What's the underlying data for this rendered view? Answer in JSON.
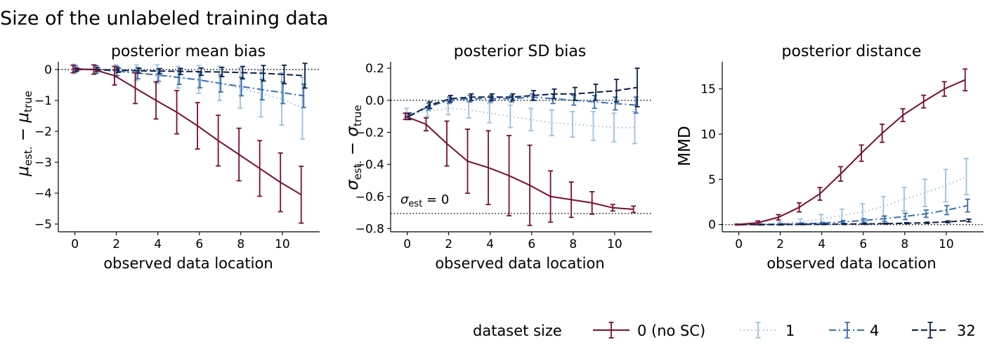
{
  "suptitle": "Size of the unlabeled training data",
  "legend": {
    "title": "dataset size",
    "placement": "bottom-right",
    "entries": [
      "0 (no SC)",
      "1",
      "4",
      "32"
    ]
  },
  "colors": {
    "0": "#7a0f2e",
    "1": "#9ec0dc",
    "4": "#3a6fae",
    "32": "#0c1f48"
  },
  "chart_data": [
    {
      "type": "line",
      "title": "posterior mean bias",
      "xlabel": "observed data location",
      "ylabel_main": "μ",
      "ylabel_sub1": "est.",
      "ylabel_mid": " − μ",
      "ylabel_sub2": "true",
      "xlim": [
        -0.8,
        11.8
      ],
      "ylim": [
        -5.25,
        0.25
      ],
      "xticks": [
        0,
        2,
        4,
        6,
        8,
        10
      ],
      "yticks": [
        0,
        -1,
        -2,
        -3,
        -4,
        -5
      ],
      "ref_line": 0,
      "x": [
        0,
        1,
        2,
        3,
        4,
        5,
        6,
        7,
        8,
        9,
        10,
        11
      ],
      "series": [
        {
          "name": "0 (no SC)",
          "style": "solid",
          "values": [
            0.02,
            0.0,
            -0.2,
            -0.6,
            -1.0,
            -1.38,
            -1.82,
            -2.3,
            -2.75,
            -3.2,
            -3.65,
            -4.05
          ],
          "errors": [
            0.12,
            0.15,
            0.3,
            0.5,
            0.6,
            0.7,
            0.75,
            0.82,
            0.85,
            0.9,
            0.95,
            0.92
          ]
        },
        {
          "name": "1",
          "style": "dotted",
          "values": [
            0.02,
            0.0,
            -0.05,
            -0.1,
            -0.15,
            -0.25,
            -0.32,
            -0.45,
            -0.6,
            -0.78,
            -0.95,
            -1.25
          ],
          "errors": [
            0.15,
            0.15,
            0.2,
            0.25,
            0.3,
            0.35,
            0.45,
            0.55,
            0.65,
            0.75,
            0.85,
            1.0
          ]
        },
        {
          "name": "4",
          "style": "dashdot",
          "values": [
            0.02,
            0.0,
            -0.05,
            -0.12,
            -0.18,
            -0.26,
            -0.34,
            -0.45,
            -0.55,
            -0.65,
            -0.75,
            -0.85
          ],
          "errors": [
            0.1,
            0.12,
            0.15,
            0.18,
            0.2,
            0.22,
            0.25,
            0.28,
            0.3,
            0.33,
            0.35,
            0.38
          ]
        },
        {
          "name": "32",
          "style": "dashed",
          "values": [
            0.0,
            0.0,
            -0.02,
            -0.04,
            -0.05,
            -0.06,
            -0.07,
            -0.08,
            -0.1,
            -0.12,
            -0.16,
            -0.2
          ],
          "errors": [
            0.05,
            0.06,
            0.07,
            0.08,
            0.08,
            0.1,
            0.12,
            0.15,
            0.2,
            0.25,
            0.3,
            0.4
          ]
        }
      ]
    },
    {
      "type": "line",
      "title": "posterior SD bias",
      "xlabel": "observed data location",
      "ylabel_main": "σ",
      "ylabel_sub1": "est.",
      "ylabel_mid": " − σ",
      "ylabel_sub2": "true",
      "xlim": [
        -0.8,
        11.8
      ],
      "ylim": [
        -0.82,
        0.24
      ],
      "xticks": [
        0,
        2,
        4,
        6,
        8,
        10
      ],
      "yticks": [
        0.2,
        0.0,
        -0.2,
        -0.4,
        -0.6,
        -0.8
      ],
      "ytick_labels": [
        "0.2",
        "0.0",
        "−0.2",
        "−0.4",
        "−0.6",
        "−0.8"
      ],
      "ref_line": 0,
      "ref_line2": -0.706,
      "annotation_main": "σ",
      "annotation_sub": "est",
      "annotation_rest": " = 0",
      "x": [
        0,
        1,
        2,
        3,
        4,
        5,
        6,
        7,
        8,
        9,
        10,
        11
      ],
      "series": [
        {
          "name": "0 (no SC)",
          "style": "solid",
          "values": [
            -0.1,
            -0.15,
            -0.27,
            -0.38,
            -0.42,
            -0.47,
            -0.53,
            -0.6,
            -0.62,
            -0.64,
            -0.67,
            -0.68
          ],
          "errors": [
            0.02,
            0.04,
            0.14,
            0.2,
            0.23,
            0.25,
            0.25,
            0.16,
            0.11,
            0.07,
            0.02,
            0.02
          ]
        },
        {
          "name": "1",
          "style": "dotted",
          "values": [
            -0.08,
            -0.07,
            -0.05,
            -0.06,
            -0.08,
            -0.1,
            -0.12,
            -0.14,
            -0.15,
            -0.16,
            -0.17,
            -0.17
          ],
          "errors": [
            0.03,
            0.03,
            0.04,
            0.05,
            0.06,
            0.07,
            0.07,
            0.08,
            0.08,
            0.09,
            0.09,
            0.1
          ]
        },
        {
          "name": "4",
          "style": "dashdot",
          "values": [
            -0.1,
            -0.04,
            0.0,
            0.01,
            0.01,
            0.01,
            0.02,
            0.01,
            0.0,
            -0.01,
            -0.02,
            -0.03
          ],
          "errors": [
            0.02,
            0.02,
            0.02,
            0.02,
            0.02,
            0.02,
            0.02,
            0.03,
            0.03,
            0.04,
            0.04,
            0.05
          ]
        },
        {
          "name": "32",
          "style": "dashed",
          "values": [
            -0.1,
            -0.03,
            0.01,
            0.02,
            0.02,
            0.02,
            0.03,
            0.04,
            0.04,
            0.05,
            0.06,
            0.08
          ],
          "errors": [
            0.02,
            0.02,
            0.02,
            0.02,
            0.02,
            0.02,
            0.03,
            0.03,
            0.04,
            0.05,
            0.07,
            0.12
          ]
        }
      ]
    },
    {
      "type": "line",
      "title": "posterior distance",
      "xlabel": "observed data location",
      "ylabel_main": "MMD",
      "xlim": [
        -0.8,
        11.8
      ],
      "ylim": [
        -0.8,
        18
      ],
      "xticks": [
        0,
        2,
        4,
        6,
        8,
        10
      ],
      "yticks": [
        0,
        5,
        10,
        15
      ],
      "ref_line": 0,
      "x": [
        0,
        1,
        2,
        3,
        4,
        5,
        6,
        7,
        8,
        9,
        10,
        11
      ],
      "series": [
        {
          "name": "0 (no SC)",
          "style": "solid",
          "values": [
            0.0,
            0.2,
            0.8,
            1.9,
            3.4,
            5.6,
            7.9,
            10.1,
            12.1,
            13.6,
            15.0,
            16.0
          ],
          "errors": [
            0.05,
            0.2,
            0.3,
            0.5,
            0.7,
            0.8,
            0.9,
            1.0,
            0.7,
            0.7,
            0.8,
            1.2
          ]
        },
        {
          "name": "1",
          "style": "dotted",
          "values": [
            0.0,
            0.05,
            0.1,
            0.3,
            0.6,
            1.0,
            1.4,
            2.0,
            2.8,
            3.5,
            4.3,
            5.3
          ],
          "errors": [
            0.05,
            0.1,
            0.2,
            0.3,
            0.5,
            0.7,
            0.9,
            1.1,
            1.3,
            1.5,
            1.8,
            2.0
          ]
        },
        {
          "name": "4",
          "style": "dashdot",
          "values": [
            0.0,
            0.0,
            0.05,
            0.1,
            0.15,
            0.3,
            0.45,
            0.65,
            0.9,
            1.2,
            1.6,
            2.1
          ],
          "errors": [
            0.02,
            0.05,
            0.05,
            0.08,
            0.1,
            0.15,
            0.2,
            0.3,
            0.35,
            0.4,
            0.5,
            0.7
          ]
        },
        {
          "name": "32",
          "style": "dashed",
          "values": [
            0.0,
            0.0,
            0.0,
            0.02,
            0.03,
            0.05,
            0.07,
            0.1,
            0.15,
            0.2,
            0.3,
            0.45
          ],
          "errors": [
            0.02,
            0.02,
            0.02,
            0.03,
            0.03,
            0.05,
            0.05,
            0.05,
            0.06,
            0.07,
            0.1,
            0.15
          ]
        }
      ]
    }
  ]
}
